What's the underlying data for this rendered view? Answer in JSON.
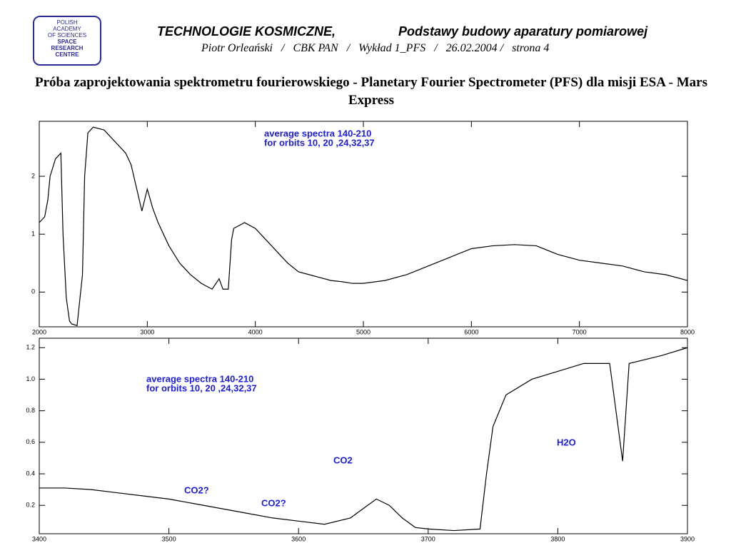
{
  "header": {
    "logo": [
      "POLISH",
      "ACADEMY",
      "OF SCIENCES",
      "SPACE",
      "RESEARCH",
      "CENTRE"
    ],
    "title_left": "TECHNOLOGIE KOSMICZNE,",
    "title_right": "Podstawy budowy aparatury pomiarowej",
    "subtitle": "Piotr Orleański   /   CBK PAN   /   Wykład 1_PFS   /   26.02.2004 /   strona 4",
    "heading": "Próba zaprojektowania spektrometru fourierowskiego - Planetary Fourier Spectrometer (PFS) dla misji ESA - Mars Express"
  },
  "chart_data": [
    {
      "type": "line",
      "annotations": [
        "average spectra 140-210",
        "for orbits 10, 20 ,24,32,37"
      ],
      "annotation_color": "#1c1ce0",
      "x": [
        2000,
        2050,
        2080,
        2100,
        2150,
        2200,
        2220,
        2250,
        2280,
        2300,
        2350,
        2400,
        2420,
        2450,
        2500,
        2600,
        2700,
        2800,
        2850,
        2900,
        2950,
        3000,
        3050,
        3100,
        3200,
        3300,
        3400,
        3500,
        3600,
        3665,
        3700,
        3750,
        3780,
        3800,
        3900,
        4000,
        4100,
        4200,
        4300,
        4400,
        4500,
        4600,
        4700,
        4800,
        4900,
        5000,
        5200,
        5400,
        5600,
        5800,
        6000,
        6200,
        6400,
        6600,
        6800,
        7000,
        7200,
        7400,
        7600,
        7800,
        8000
      ],
      "series": [
        {
          "color": "#000000",
          "values": [
            1.2,
            1.3,
            1.6,
            2.0,
            2.3,
            2.4,
            1.0,
            -0.1,
            -0.5,
            -0.55,
            -0.58,
            0.3,
            2.0,
            2.75,
            2.85,
            2.8,
            2.6,
            2.4,
            2.2,
            1.8,
            1.4,
            1.78,
            1.45,
            1.2,
            0.8,
            0.5,
            0.3,
            0.15,
            0.05,
            0.23,
            0.05,
            0.05,
            0.9,
            1.1,
            1.2,
            1.1,
            0.9,
            0.7,
            0.5,
            0.35,
            0.3,
            0.25,
            0.2,
            0.18,
            0.15,
            0.15,
            0.2,
            0.3,
            0.45,
            0.6,
            0.75,
            0.8,
            0.82,
            0.8,
            0.65,
            0.55,
            0.5,
            0.45,
            0.35,
            0.3,
            0.2
          ]
        }
      ],
      "xlim": [
        2000,
        8000
      ],
      "xticks": [
        2000,
        3000,
        4000,
        5000,
        6000,
        7000,
        8000
      ],
      "ylim": [
        -0.6,
        2.95
      ],
      "yticks": [
        0,
        1,
        2
      ]
    },
    {
      "type": "line",
      "annotations": [
        "average spectra 140-210",
        "for orbits 10, 20 ,24,32,37",
        "CO2?",
        "CO2?",
        "CO2",
        "H2O"
      ],
      "annotation_color": "#1c1ce0",
      "x": [
        3400,
        3420,
        3440,
        3460,
        3480,
        3500,
        3520,
        3540,
        3560,
        3580,
        3600,
        3620,
        3640,
        3650,
        3660,
        3670,
        3680,
        3690,
        3700,
        3720,
        3740,
        3745,
        3750,
        3760,
        3780,
        3800,
        3820,
        3840,
        3850,
        3855,
        3880,
        3900
      ],
      "series": [
        {
          "color": "#000000",
          "values": [
            0.31,
            0.31,
            0.3,
            0.28,
            0.26,
            0.24,
            0.21,
            0.18,
            0.15,
            0.12,
            0.1,
            0.08,
            0.12,
            0.18,
            0.24,
            0.2,
            0.12,
            0.06,
            0.05,
            0.04,
            0.05,
            0.4,
            0.7,
            0.9,
            1.0,
            1.05,
            1.1,
            1.1,
            0.48,
            1.1,
            1.15,
            1.2
          ]
        }
      ],
      "xlim": [
        3400,
        3900
      ],
      "xticks": [
        3400,
        3500,
        3600,
        3700,
        3800,
        3900
      ],
      "ylim": [
        0.02,
        1.26
      ],
      "yticks": [
        0.2,
        0.4,
        0.6,
        0.8,
        {
          "value": 1,
          "label": "1.0"
        },
        1.2
      ]
    }
  ]
}
